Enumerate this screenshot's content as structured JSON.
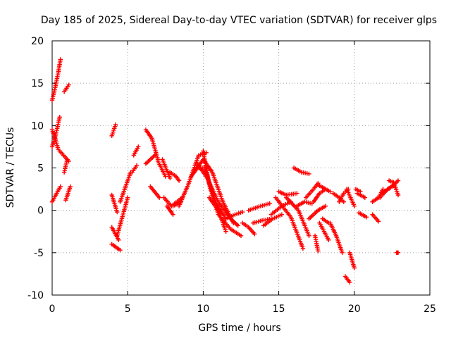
{
  "chart_data": {
    "type": "scatter",
    "title": "Day 185 of 2025, Sidereal Day-to-day VTEC variation (SDTVAR) for receiver glps",
    "xlabel": "GPS time / hours",
    "ylabel": "SDTVAR / TECUs",
    "xlim": [
      0,
      25
    ],
    "ylim": [
      -10,
      20
    ],
    "xticks": [
      0,
      5,
      10,
      15,
      20,
      25
    ],
    "yticks": [
      -10,
      -5,
      0,
      5,
      10,
      15,
      20
    ],
    "xtick_labels": [
      "0",
      "5",
      "10",
      "15",
      "20",
      "25"
    ],
    "ytick_labels": [
      "-10",
      "-5",
      "0",
      "5",
      "10",
      "15",
      "20"
    ],
    "grid": true,
    "marker": "plus",
    "color": "#ff0000",
    "tracks": [
      {
        "x": [
          0.0,
          0.2,
          0.4,
          0.55
        ],
        "y": [
          13.0,
          14.5,
          16.2,
          17.8
        ]
      },
      {
        "x": [
          0.8,
          1.1
        ],
        "y": [
          14.0,
          14.8
        ]
      },
      {
        "x": [
          0.0,
          0.25,
          0.5
        ],
        "y": [
          7.5,
          9.0,
          11.0
        ]
      },
      {
        "x": [
          0.0,
          0.2,
          0.4
        ],
        "y": [
          9.5,
          8.5,
          7.2
        ]
      },
      {
        "x": [
          0.5,
          1.1
        ],
        "y": [
          7.0,
          5.8
        ]
      },
      {
        "x": [
          0.8,
          1.0
        ],
        "y": [
          4.5,
          6.0
        ]
      },
      {
        "x": [
          0.0,
          0.3,
          0.55
        ],
        "y": [
          1.0,
          2.0,
          2.8
        ]
      },
      {
        "x": [
          0.9,
          1.2
        ],
        "y": [
          1.2,
          2.8
        ]
      },
      {
        "x": [
          3.95,
          4.2
        ],
        "y": [
          8.8,
          10.1
        ]
      },
      {
        "x": [
          3.95,
          4.3
        ],
        "y": [
          1.8,
          -0.2
        ]
      },
      {
        "x": [
          3.95,
          4.4
        ],
        "y": [
          -2.0,
          -3.5
        ]
      },
      {
        "x": [
          3.95,
          4.5
        ],
        "y": [
          -4.0,
          -4.7
        ]
      },
      {
        "x": [
          4.3,
          5.0
        ],
        "y": [
          -3.0,
          1.5
        ]
      },
      {
        "x": [
          4.5,
          5.2
        ],
        "y": [
          1.0,
          4.5
        ]
      },
      {
        "x": [
          5.3,
          5.6
        ],
        "y": [
          4.5,
          5.3
        ]
      },
      {
        "x": [
          5.4,
          5.7
        ],
        "y": [
          6.5,
          7.5
        ]
      },
      {
        "x": [
          6.2,
          6.6,
          7.0
        ],
        "y": [
          9.5,
          8.5,
          6.0
        ]
      },
      {
        "x": [
          6.2,
          6.8
        ],
        "y": [
          5.5,
          6.5
        ]
      },
      {
        "x": [
          6.5,
          7.1
        ],
        "y": [
          2.8,
          1.5
        ]
      },
      {
        "x": [
          7.0,
          7.5
        ],
        "y": [
          5.8,
          4.0
        ]
      },
      {
        "x": [
          7.3,
          7.8
        ],
        "y": [
          6.0,
          3.8
        ]
      },
      {
        "x": [
          7.4,
          7.9,
          8.6
        ],
        "y": [
          1.5,
          0.5,
          1.5
        ]
      },
      {
        "x": [
          7.6,
          8.0
        ],
        "y": [
          0.5,
          -0.5
        ]
      },
      {
        "x": [
          8.0,
          8.5
        ],
        "y": [
          0.5,
          1.0
        ]
      },
      {
        "x": [
          7.8,
          8.2,
          8.4
        ],
        "y": [
          4.5,
          4.0,
          3.5
        ]
      },
      {
        "x": [
          8.4,
          9.0,
          9.7,
          10.2
        ],
        "y": [
          0.5,
          3.0,
          6.5,
          6.8
        ]
      },
      {
        "x": [
          9.2,
          9.6,
          10.1,
          10.8,
          11.5
        ],
        "y": [
          4.0,
          5.0,
          5.0,
          1.0,
          -1.0
        ]
      },
      {
        "x": [
          9.4,
          10.0,
          10.6,
          11.3,
          12.0
        ],
        "y": [
          4.5,
          6.0,
          4.5,
          1.0,
          -1.5
        ]
      },
      {
        "x": [
          9.6,
          10.2,
          11.0,
          11.8,
          12.3
        ],
        "y": [
          5.5,
          4.0,
          1.0,
          -1.0,
          -1.8
        ]
      },
      {
        "x": [
          10.0,
          10.4,
          11.0,
          11.8,
          12.5
        ],
        "y": [
          7.0,
          3.0,
          -0.5,
          -2.2,
          -3.0
        ]
      },
      {
        "x": [
          10.4,
          11.0,
          11.5
        ],
        "y": [
          1.5,
          0.0,
          -2.5
        ]
      },
      {
        "x": [
          11.5,
          12.1,
          12.6
        ],
        "y": [
          -1.0,
          -0.5,
          -0.2
        ]
      },
      {
        "x": [
          12.6,
          13.0,
          13.4
        ],
        "y": [
          -1.5,
          -2.0,
          -2.8
        ]
      },
      {
        "x": [
          13.0,
          13.8,
          14.4
        ],
        "y": [
          0.0,
          0.5,
          0.8
        ]
      },
      {
        "x": [
          13.3,
          13.9,
          14.5
        ],
        "y": [
          -1.5,
          -1.2,
          -1.0
        ]
      },
      {
        "x": [
          14.0,
          14.6,
          15.2
        ],
        "y": [
          -1.8,
          -1.0,
          -0.5
        ]
      },
      {
        "x": [
          14.5,
          15.2,
          15.8
        ],
        "y": [
          -0.5,
          0.5,
          1.0
        ]
      },
      {
        "x": [
          15.0,
          15.5,
          16.2
        ],
        "y": [
          2.2,
          1.8,
          2.0
        ]
      },
      {
        "x": [
          14.8,
          15.8,
          16.6
        ],
        "y": [
          1.5,
          -0.8,
          -4.5
        ]
      },
      {
        "x": [
          15.5,
          16.3,
          17.0
        ],
        "y": [
          1.5,
          0.0,
          -3.0
        ]
      },
      {
        "x": [
          16.0,
          16.5,
          17.0
        ],
        "y": [
          5.0,
          4.5,
          4.3
        ]
      },
      {
        "x": [
          16.2,
          16.7,
          17.2
        ],
        "y": [
          0.5,
          1.0,
          0.8
        ]
      },
      {
        "x": [
          17.0,
          17.6,
          18.1
        ],
        "y": [
          -1.0,
          0.0,
          0.5
        ]
      },
      {
        "x": [
          16.8,
          17.3,
          17.6
        ],
        "y": [
          1.5,
          2.5,
          3.2
        ]
      },
      {
        "x": [
          17.3,
          17.7,
          18.1
        ],
        "y": [
          1.0,
          2.0,
          2.5
        ]
      },
      {
        "x": [
          17.6,
          18.1,
          18.4
        ],
        "y": [
          3.0,
          2.5,
          2.2
        ]
      },
      {
        "x": [
          17.7,
          18.0,
          18.3
        ],
        "y": [
          -1.5,
          -2.5,
          -3.5
        ]
      },
      {
        "x": [
          17.4,
          17.6
        ],
        "y": [
          -3.0,
          -4.8
        ]
      },
      {
        "x": [
          17.9,
          18.3
        ],
        "y": [
          -1.0,
          -1.5
        ]
      },
      {
        "x": [
          18.4,
          18.8,
          19.2
        ],
        "y": [
          -1.5,
          -3.0,
          -5.0
        ]
      },
      {
        "x": [
          18.6,
          19.0,
          19.3
        ],
        "y": [
          2.0,
          1.5,
          1.0
        ]
      },
      {
        "x": [
          19.0,
          19.3,
          19.6
        ],
        "y": [
          1.0,
          2.0,
          2.5
        ]
      },
      {
        "x": [
          19.7,
          20.0
        ],
        "y": [
          -5.0,
          -6.8
        ]
      },
      {
        "x": [
          19.4,
          19.7
        ],
        "y": [
          -7.8,
          -8.5
        ]
      },
      {
        "x": [
          19.5,
          20.0
        ],
        "y": [
          2.5,
          0.5
        ]
      },
      {
        "x": [
          20.1,
          20.4
        ],
        "y": [
          2.5,
          2.2
        ]
      },
      {
        "x": [
          20.3,
          20.8
        ],
        "y": [
          -0.3,
          -0.8
        ]
      },
      {
        "x": [
          20.2,
          20.7
        ],
        "y": [
          2.0,
          1.5
        ]
      },
      {
        "x": [
          21.2,
          21.6
        ],
        "y": [
          -0.5,
          -1.3
        ]
      },
      {
        "x": [
          21.2,
          21.6,
          21.9
        ],
        "y": [
          1.0,
          1.5,
          2.5
        ]
      },
      {
        "x": [
          21.7,
          22.2,
          22.6
        ],
        "y": [
          1.5,
          2.5,
          3.0
        ]
      },
      {
        "x": [
          22.0,
          22.5,
          22.9
        ],
        "y": [
          2.2,
          2.8,
          3.5
        ]
      },
      {
        "x": [
          22.3,
          22.6,
          22.9
        ],
        "y": [
          3.5,
          3.3,
          1.8
        ]
      },
      {
        "x": [
          22.8,
          22.9
        ],
        "y": [
          -5.0,
          -5.0
        ]
      }
    ]
  }
}
